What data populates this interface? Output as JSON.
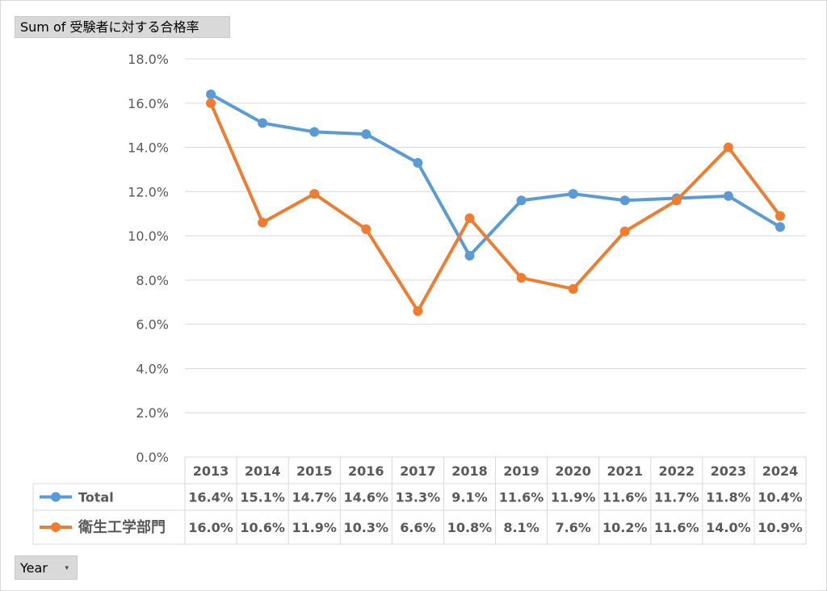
{
  "measure_button": {
    "label": "Sum of 受験者に対する合格率"
  },
  "year_button": {
    "label": "Year",
    "dropdown_icon": "chevron-down-icon"
  },
  "colors": {
    "total": "#5b9bd5",
    "dept": "#ed7d31",
    "grid": "#d9d9d9",
    "axis_text": "#595959"
  },
  "chart_data": {
    "type": "line",
    "title": "",
    "xlabel": "",
    "ylabel": "",
    "ylim": [
      0,
      18
    ],
    "y_tick_step": 2,
    "y_tick_labels": [
      "0.0%",
      "2.0%",
      "4.0%",
      "6.0%",
      "8.0%",
      "10.0%",
      "12.0%",
      "14.0%",
      "16.0%",
      "18.0%"
    ],
    "grid": true,
    "legend": "data-table",
    "categories": [
      "2013",
      "2014",
      "2015",
      "2016",
      "2017",
      "2018",
      "2019",
      "2020",
      "2021",
      "2022",
      "2023",
      "2024"
    ],
    "series": [
      {
        "name": "Total",
        "color": "#5b9bd5",
        "values": [
          16.4,
          15.1,
          14.7,
          14.6,
          13.3,
          9.1,
          11.6,
          11.9,
          11.6,
          11.7,
          11.8,
          10.4
        ],
        "labels": [
          "16.4%",
          "15.1%",
          "14.7%",
          "14.6%",
          "13.3%",
          "9.1%",
          "11.6%",
          "11.9%",
          "11.6%",
          "11.7%",
          "11.8%",
          "10.4%"
        ]
      },
      {
        "name": "衛生工学部門",
        "color": "#ed7d31",
        "values": [
          16.0,
          10.6,
          11.9,
          10.3,
          6.6,
          10.8,
          8.1,
          7.6,
          10.2,
          11.6,
          14.0,
          10.9
        ],
        "labels": [
          "16.0%",
          "10.6%",
          "11.9%",
          "10.3%",
          "6.6%",
          "10.8%",
          "8.1%",
          "7.6%",
          "10.2%",
          "11.6%",
          "14.0%",
          "10.9%"
        ]
      }
    ]
  }
}
